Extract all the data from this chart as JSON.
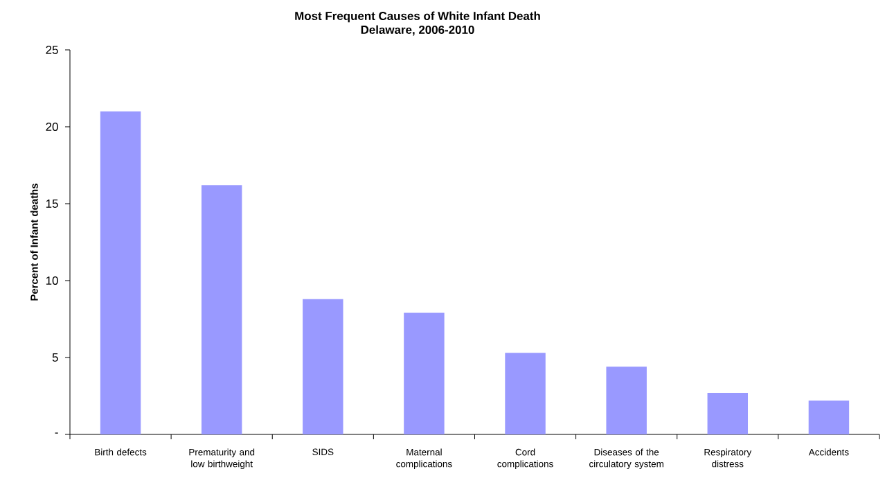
{
  "chart_data": {
    "type": "bar",
    "title": "Most Frequent Causes of White Infant Death",
    "subtitle": "Delaware, 2006-2010",
    "ylabel": "Percent of Infant deaths",
    "categories": [
      "Birth defects",
      "Prematurity and low birthweight",
      "SIDS",
      "Maternal complications",
      "Cord complications",
      "Diseases of the circulatory system",
      "Respiratory distress",
      "Accidents"
    ],
    "values": [
      21.0,
      16.2,
      8.8,
      7.9,
      5.3,
      4.4,
      2.7,
      2.2
    ],
    "color": "#9999ff",
    "ylim": [
      0,
      25
    ],
    "yticks": [
      {
        "value": 0,
        "label": "-"
      },
      5,
      10,
      15,
      20,
      25
    ],
    "grid": false
  }
}
